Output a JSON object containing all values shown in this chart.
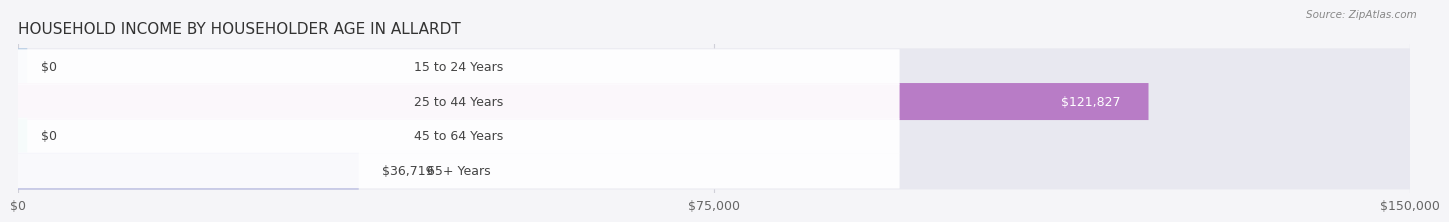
{
  "title": "HOUSEHOLD INCOME BY HOUSEHOLDER AGE IN ALLARDT",
  "source": "Source: ZipAtlas.com",
  "categories": [
    "15 to 24 Years",
    "25 to 44 Years",
    "45 to 64 Years",
    "65+ Years"
  ],
  "values": [
    0,
    121827,
    0,
    36719
  ],
  "bar_colors": [
    "#a8c4e0",
    "#b87cc6",
    "#5bbcb8",
    "#9b9fd4"
  ],
  "value_labels": [
    "$0",
    "$121,827",
    "$0",
    "$36,719"
  ],
  "label_inside": [
    false,
    true,
    false,
    false
  ],
  "xlim": [
    0,
    150000
  ],
  "xticks": [
    0,
    75000,
    150000
  ],
  "xtick_labels": [
    "$0",
    "$75,000",
    "$150,000"
  ],
  "title_fontsize": 11,
  "tick_fontsize": 9,
  "bar_height": 0.58,
  "background_color": "#f5f5f8",
  "bar_bg_color": "#e8e8f0",
  "grid_color": "#d0d0d8"
}
